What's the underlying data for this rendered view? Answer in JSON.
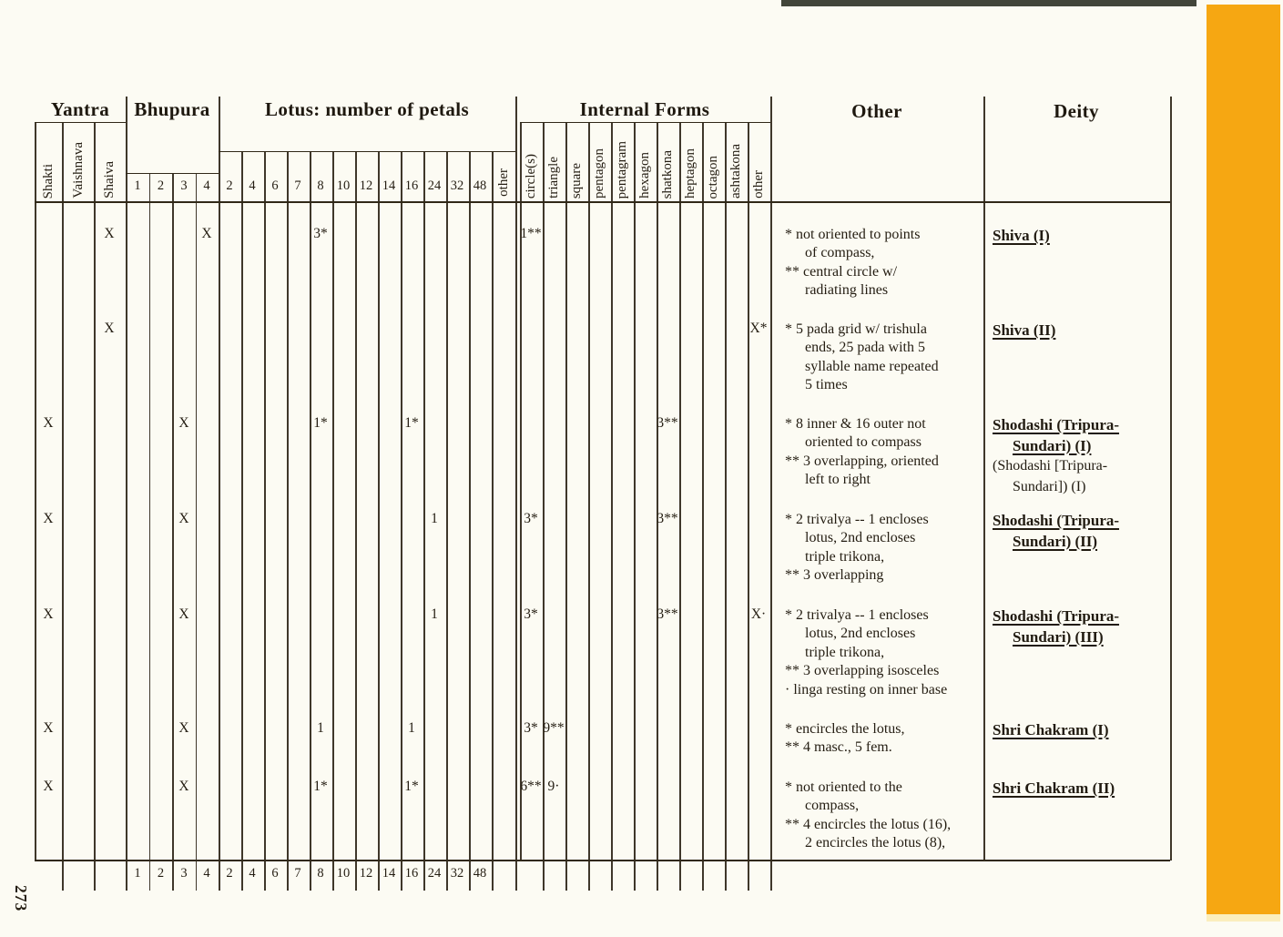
{
  "page_number": "273",
  "colors": {
    "page_bg": "#fcfbf3",
    "orange_bar": "#f6a712",
    "orange_bar_fade": "#fbeebd",
    "top_strip": "#42453a"
  },
  "table": {
    "groups": {
      "yantra": "Yantra",
      "bhupura": "Bhupura",
      "lotus": "Lotus: number of petals",
      "internal": "Internal Forms",
      "other": "Other",
      "deity": "Deity"
    },
    "yantra_columns": [
      "Shakti",
      "Vaishnava",
      "Shaiva"
    ],
    "bhupura_columns": [
      "1",
      "2",
      "3",
      "4"
    ],
    "lotus_columns": [
      "2",
      "4",
      "6",
      "7",
      "8",
      "10",
      "12",
      "14",
      "16",
      "24",
      "32",
      "48",
      "other"
    ],
    "internal_columns": [
      "circle(s)",
      "triangle",
      "square",
      "pentagon",
      "pentagram",
      "hexagon",
      "shatkona",
      "heptagon",
      "octagon",
      "ashtakona",
      "other"
    ],
    "footer_columns": [
      "1",
      "2",
      "3",
      "4",
      "2",
      "4",
      "6",
      "7",
      "8",
      "10",
      "12",
      "14",
      "16",
      "24",
      "32",
      "48"
    ],
    "rows": [
      {
        "marks": [
          {
            "col": "shaiva",
            "v": "X"
          },
          {
            "col": "b4",
            "v": "X"
          },
          {
            "col": "l8",
            "v": "3*"
          },
          {
            "col": "circles",
            "v": "1**"
          }
        ],
        "notes": [
          "* not oriented to points",
          "of compass,",
          "** central circle w/",
          "radiating lines"
        ],
        "deity": [
          {
            "t": "Shiva (I)",
            "u": true
          }
        ]
      },
      {
        "marks": [
          {
            "col": "shaiva",
            "v": "X"
          },
          {
            "col": "iother",
            "v": "X*"
          }
        ],
        "notes": [
          "* 5 pada grid w/ trishula",
          "ends, 25 pada with 5",
          "syllable name repeated",
          "5 times"
        ],
        "deity": [
          {
            "t": "Shiva (II)",
            "u": true
          }
        ]
      },
      {
        "marks": [
          {
            "col": "shakti",
            "v": "X"
          },
          {
            "col": "b3",
            "v": "X"
          },
          {
            "col": "l8",
            "v": "1*"
          },
          {
            "col": "l16",
            "v": "1*"
          },
          {
            "col": "shatkona",
            "v": "3**"
          }
        ],
        "notes": [
          "* 8 inner & 16 outer not",
          "oriented to compass",
          "** 3 overlapping, oriented",
          "left to right"
        ],
        "deity": [
          {
            "t": "Shodashi (Tripura-",
            "u": true
          },
          {
            "t": "Sundari) (I)",
            "u": true,
            "i": true
          },
          {
            "t": "(Shodashi [Tripura-",
            "u": false
          },
          {
            "t": "Sundari]) (I)",
            "u": false,
            "i": true
          }
        ]
      },
      {
        "marks": [
          {
            "col": "shakti",
            "v": "X"
          },
          {
            "col": "b3",
            "v": "X"
          },
          {
            "col": "l24",
            "v": "1"
          },
          {
            "col": "circles",
            "v": "3*"
          },
          {
            "col": "shatkona",
            "v": "3**"
          }
        ],
        "notes": [
          "* 2 trivalya -- 1 encloses",
          "lotus, 2nd encloses",
          "triple trikona,",
          "** 3 overlapping"
        ],
        "deity": [
          {
            "t": "Shodashi (Tripura-",
            "u": true
          },
          {
            "t": "Sundari) (II)",
            "u": true,
            "i": true
          }
        ]
      },
      {
        "marks": [
          {
            "col": "shakti",
            "v": "X"
          },
          {
            "col": "b3",
            "v": "X"
          },
          {
            "col": "l24",
            "v": "1"
          },
          {
            "col": "circles",
            "v": "3*"
          },
          {
            "col": "shatkona",
            "v": "3**"
          },
          {
            "col": "iother",
            "v": "X·"
          }
        ],
        "notes": [
          "* 2 trivalya -- 1 encloses",
          "lotus, 2nd encloses",
          "triple trikona,",
          "** 3 overlapping isosceles",
          "· linga resting on inner base"
        ],
        "deity": [
          {
            "t": "Shodashi (Tripura-",
            "u": true
          },
          {
            "t": "Sundari) (III)",
            "u": true,
            "i": true
          }
        ]
      },
      {
        "marks": [
          {
            "col": "shakti",
            "v": "X"
          },
          {
            "col": "b3",
            "v": "X"
          },
          {
            "col": "l8",
            "v": "1"
          },
          {
            "col": "l16",
            "v": "1"
          },
          {
            "col": "circles",
            "v": "3*"
          },
          {
            "col": "triangle",
            "v": "9**"
          }
        ],
        "notes": [
          "* encircles the lotus,",
          "** 4 masc., 5 fem."
        ],
        "deity": [
          {
            "t": "Shri Chakram (I)",
            "u": true
          }
        ]
      },
      {
        "marks": [
          {
            "col": "shakti",
            "v": "X"
          },
          {
            "col": "b3",
            "v": "X"
          },
          {
            "col": "l8",
            "v": "1*"
          },
          {
            "col": "l16",
            "v": "1*"
          },
          {
            "col": "circles",
            "v": "6**"
          },
          {
            "col": "triangle",
            "v": "9·"
          }
        ],
        "notes": [
          "* not oriented to the",
          "compass,",
          "** 4 encircles the lotus (16),",
          "2 encircles the lotus (8),"
        ],
        "deity": [
          {
            "t": "Shri Chakram (II)",
            "u": true
          }
        ]
      }
    ]
  }
}
